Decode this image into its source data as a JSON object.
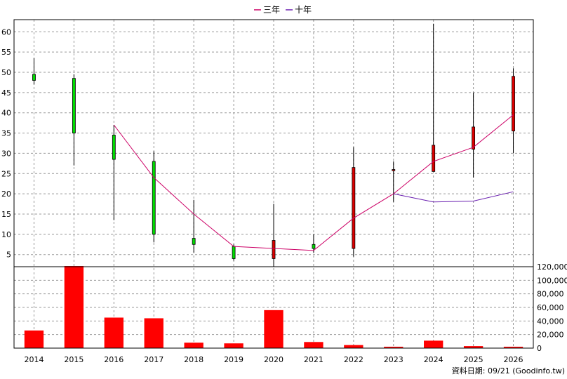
{
  "chart_data": {
    "type": "candlestick+line+bar",
    "legend": [
      {
        "name": "三年",
        "color": "#cc0066"
      },
      {
        "name": "十年",
        "color": "#6a1fb0"
      }
    ],
    "years": [
      "2014",
      "2015",
      "2016",
      "2017",
      "2018",
      "2019",
      "2020",
      "2021",
      "2022",
      "2023",
      "2024",
      "2025",
      "2026"
    ],
    "price_axis": {
      "min": 2,
      "max": 63,
      "ticks": [
        5,
        10,
        15,
        20,
        25,
        30,
        35,
        40,
        45,
        50,
        55,
        60
      ]
    },
    "volume_axis": {
      "min": 0,
      "max": 120000,
      "ticks": [
        "0",
        "20,000",
        "40,000",
        "60,000",
        "80,000",
        "100,000",
        "120,000"
      ],
      "tick_values": [
        0,
        20000,
        40000,
        60000,
        80000,
        100000,
        120000
      ]
    },
    "candles": [
      {
        "year": "2014",
        "open": 48.0,
        "close": 49.5,
        "high": 53.5,
        "low": 47.0,
        "color": "green"
      },
      {
        "year": "2015",
        "open": 48.5,
        "close": 35.0,
        "high": 49.5,
        "low": 27.0,
        "color": "green"
      },
      {
        "year": "2016",
        "open": 34.5,
        "close": 28.5,
        "high": 37.0,
        "low": 13.5,
        "color": "green"
      },
      {
        "year": "2017",
        "open": 28.0,
        "close": 10.0,
        "high": 30.5,
        "low": 8.0,
        "color": "green"
      },
      {
        "year": "2018",
        "open": 9.0,
        "close": 7.5,
        "high": 18.5,
        "low": 5.5,
        "color": "green"
      },
      {
        "year": "2019",
        "open": 7.0,
        "close": 4.0,
        "high": 7.5,
        "low": 3.5,
        "color": "green"
      },
      {
        "year": "2020",
        "open": 4.0,
        "close": 8.5,
        "high": 17.5,
        "low": 2.0,
        "color": "red"
      },
      {
        "year": "2021",
        "open": 7.5,
        "close": 6.5,
        "high": 10.0,
        "low": 5.5,
        "color": "green"
      },
      {
        "year": "2022",
        "open": 6.5,
        "close": 26.5,
        "high": 31.5,
        "low": 4.5,
        "color": "red"
      },
      {
        "year": "2023",
        "open": 25.7,
        "close": 26.0,
        "high": 28.0,
        "low": 18.0,
        "color": "red"
      },
      {
        "year": "2024",
        "open": 25.5,
        "close": 32.0,
        "high": 62.0,
        "low": 25.5,
        "color": "red"
      },
      {
        "year": "2025",
        "open": 31.0,
        "close": 36.5,
        "high": 45.0,
        "low": 24.0,
        "color": "red"
      },
      {
        "year": "2026",
        "open": 35.5,
        "close": 49.0,
        "high": 51.0,
        "low": 30.0,
        "color": "red"
      }
    ],
    "series": [
      {
        "name": "三年",
        "x": [
          "2016",
          "2017",
          "2018",
          "2019",
          "2020",
          "2021",
          "2022",
          "2023",
          "2024",
          "2025",
          "2026"
        ],
        "values": [
          37.0,
          24.0,
          15.0,
          7.0,
          6.5,
          6.0,
          14.0,
          20.0,
          28.0,
          31.5,
          39.5
        ]
      },
      {
        "name": "十年",
        "x": [
          "2023",
          "2024",
          "2025",
          "2026"
        ],
        "values": [
          20.0,
          18.0,
          18.2,
          20.5
        ]
      }
    ],
    "volume": [
      26000,
      121000,
      45000,
      44000,
      8000,
      7000,
      56000,
      9000,
      4500,
      2000,
      11000,
      3000,
      2000
    ],
    "grid": true
  },
  "footer_note": "資料日期: 09/21  (Goodinfo.tw)"
}
